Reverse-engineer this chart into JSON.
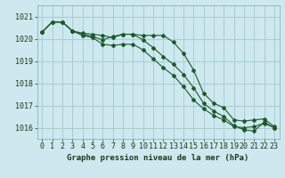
{
  "xlabel": "Graphe pression niveau de la mer (hPa)",
  "bg_color": "#cde8ee",
  "grid_color": "#a8cdd4",
  "line_color": "#1a5c2a",
  "hours": [
    0,
    1,
    2,
    3,
    4,
    5,
    6,
    7,
    8,
    9,
    10,
    11,
    12,
    13,
    14,
    15,
    16,
    17,
    18,
    19,
    20,
    21,
    22,
    23
  ],
  "line1": [
    1020.3,
    1020.75,
    1020.75,
    1020.35,
    1020.25,
    1020.2,
    1020.15,
    1020.05,
    1020.2,
    1020.2,
    1020.15,
    1020.15,
    1020.15,
    1019.85,
    1019.35,
    1018.6,
    1017.55,
    1017.1,
    1016.9,
    1016.35,
    1016.3,
    1016.35,
    1016.4,
    1016.05
  ],
  "line2": [
    1020.3,
    1020.75,
    1020.75,
    1020.35,
    1020.2,
    1020.1,
    1019.95,
    1020.1,
    1020.2,
    1020.2,
    1019.95,
    1019.6,
    1019.2,
    1018.85,
    1018.4,
    1017.8,
    1017.1,
    1016.75,
    1016.5,
    1016.1,
    1015.9,
    1015.85,
    1016.25,
    1016.0
  ],
  "line3": [
    1020.3,
    1020.75,
    1020.75,
    1020.35,
    1020.15,
    1020.05,
    1019.75,
    1019.7,
    1019.75,
    1019.75,
    1019.5,
    1019.1,
    1018.7,
    1018.35,
    1017.85,
    1017.25,
    1016.85,
    1016.55,
    1016.35,
    1016.05,
    1016.0,
    1016.05,
    1016.2,
    1016.0
  ],
  "ylim_min": 1015.5,
  "ylim_max": 1021.5,
  "yticks": [
    1016,
    1017,
    1018,
    1019,
    1020,
    1021
  ],
  "tick_fontsize": 6.0,
  "xlabel_fontsize": 6.5
}
